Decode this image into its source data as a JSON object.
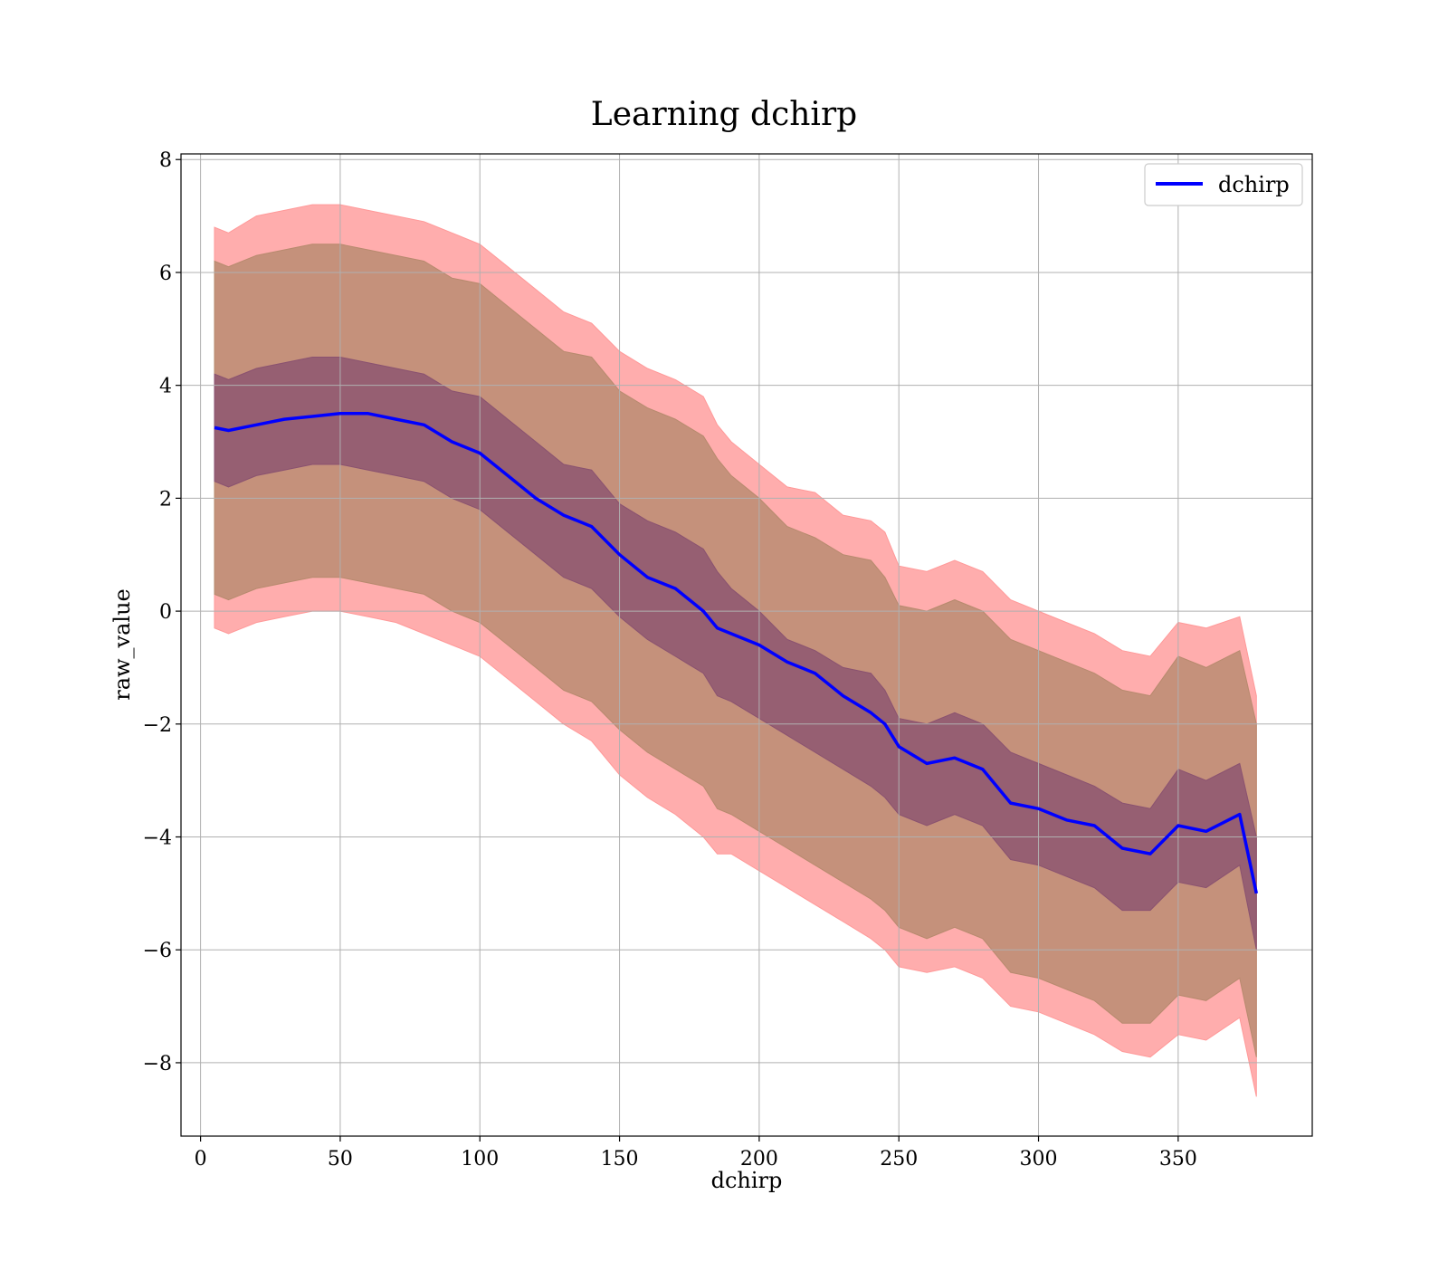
{
  "chart_data": {
    "type": "line",
    "title": "Learning dchirp",
    "xlabel": "dchirp",
    "ylabel": "raw_value",
    "xlim": [
      -7,
      398
    ],
    "ylim": [
      -9.3,
      8.1
    ],
    "x_ticks": [
      0,
      50,
      100,
      150,
      200,
      250,
      300,
      350
    ],
    "x_tick_labels": [
      "0",
      "50",
      "100",
      "150",
      "200",
      "250",
      "300",
      "350"
    ],
    "y_ticks": [
      8,
      6,
      4,
      2,
      0,
      -2,
      -4,
      -6,
      -8
    ],
    "y_tick_labels": [
      "8",
      "6",
      "4",
      "2",
      "0",
      "−2",
      "−4",
      "−6",
      "−8"
    ],
    "grid": true,
    "legend": {
      "position": "top-right",
      "entries": [
        "dchirp"
      ]
    },
    "colors": {
      "line": "#0000ff",
      "band_outer": "#ff9999",
      "band_middle": "#b78a6e",
      "band_inner": "#8a5270",
      "grid": "#b0b0b0"
    },
    "series": [
      {
        "name": "dchirp",
        "x": [
          5,
          10,
          20,
          30,
          40,
          50,
          60,
          70,
          80,
          90,
          100,
          110,
          120,
          130,
          140,
          150,
          160,
          170,
          180,
          185,
          190,
          200,
          210,
          220,
          230,
          240,
          245,
          250,
          260,
          270,
          280,
          290,
          300,
          310,
          320,
          330,
          340,
          350,
          360,
          372,
          378
        ],
        "y": [
          3.25,
          3.2,
          3.3,
          3.4,
          3.45,
          3.5,
          3.5,
          3.4,
          3.3,
          3.0,
          2.8,
          2.4,
          2.0,
          1.7,
          1.5,
          1.0,
          0.6,
          0.4,
          0.0,
          -0.3,
          -0.4,
          -0.6,
          -0.9,
          -1.1,
          -1.5,
          -1.8,
          -2.0,
          -2.4,
          -2.7,
          -2.6,
          -2.8,
          -3.4,
          -3.5,
          -3.7,
          -3.8,
          -4.2,
          -4.3,
          -3.8,
          -3.9,
          -3.6,
          -5.0
        ]
      }
    ],
    "bands": [
      {
        "level": "outer",
        "lower": [
          -0.3,
          -0.4,
          -0.2,
          -0.1,
          0.0,
          0.0,
          -0.1,
          -0.2,
          -0.4,
          -0.6,
          -0.8,
          -1.2,
          -1.6,
          -2.0,
          -2.3,
          -2.9,
          -3.3,
          -3.6,
          -4.0,
          -4.3,
          -4.3,
          -4.6,
          -4.9,
          -5.2,
          -5.5,
          -5.8,
          -6.0,
          -6.3,
          -6.4,
          -6.3,
          -6.5,
          -7.0,
          -7.1,
          -7.3,
          -7.5,
          -7.8,
          -7.9,
          -7.5,
          -7.6,
          -7.2,
          -8.6
        ],
        "upper": [
          6.8,
          6.7,
          7.0,
          7.1,
          7.2,
          7.2,
          7.1,
          7.0,
          6.9,
          6.7,
          6.5,
          6.1,
          5.7,
          5.3,
          5.1,
          4.6,
          4.3,
          4.1,
          3.8,
          3.3,
          3.0,
          2.6,
          2.2,
          2.1,
          1.7,
          1.6,
          1.4,
          0.8,
          0.7,
          0.9,
          0.7,
          0.2,
          0.0,
          -0.2,
          -0.4,
          -0.7,
          -0.8,
          -0.2,
          -0.3,
          -0.1,
          -1.5
        ]
      },
      {
        "level": "middle",
        "lower": [
          0.3,
          0.2,
          0.4,
          0.5,
          0.6,
          0.6,
          0.5,
          0.4,
          0.3,
          0.0,
          -0.2,
          -0.6,
          -1.0,
          -1.4,
          -1.6,
          -2.1,
          -2.5,
          -2.8,
          -3.1,
          -3.5,
          -3.6,
          -3.9,
          -4.2,
          -4.5,
          -4.8,
          -5.1,
          -5.3,
          -5.6,
          -5.8,
          -5.6,
          -5.8,
          -6.4,
          -6.5,
          -6.7,
          -6.9,
          -7.3,
          -7.3,
          -6.8,
          -6.9,
          -6.5,
          -7.9
        ],
        "upper": [
          6.2,
          6.1,
          6.3,
          6.4,
          6.5,
          6.5,
          6.4,
          6.3,
          6.2,
          5.9,
          5.8,
          5.4,
          5.0,
          4.6,
          4.5,
          3.9,
          3.6,
          3.4,
          3.1,
          2.7,
          2.4,
          2.0,
          1.5,
          1.3,
          1.0,
          0.9,
          0.6,
          0.1,
          0.0,
          0.2,
          0.0,
          -0.5,
          -0.7,
          -0.9,
          -1.1,
          -1.4,
          -1.5,
          -0.8,
          -1.0,
          -0.7,
          -2.0
        ]
      },
      {
        "level": "inner",
        "lower": [
          2.3,
          2.2,
          2.4,
          2.5,
          2.6,
          2.6,
          2.5,
          2.4,
          2.3,
          2.0,
          1.8,
          1.4,
          1.0,
          0.6,
          0.4,
          -0.1,
          -0.5,
          -0.8,
          -1.1,
          -1.5,
          -1.6,
          -1.9,
          -2.2,
          -2.5,
          -2.8,
          -3.1,
          -3.3,
          -3.6,
          -3.8,
          -3.6,
          -3.8,
          -4.4,
          -4.5,
          -4.7,
          -4.9,
          -5.3,
          -5.3,
          -4.8,
          -4.9,
          -4.5,
          -6.0
        ],
        "upper": [
          4.2,
          4.1,
          4.3,
          4.4,
          4.5,
          4.5,
          4.4,
          4.3,
          4.2,
          3.9,
          3.8,
          3.4,
          3.0,
          2.6,
          2.5,
          1.9,
          1.6,
          1.4,
          1.1,
          0.7,
          0.4,
          0.0,
          -0.5,
          -0.7,
          -1.0,
          -1.1,
          -1.4,
          -1.9,
          -2.0,
          -1.8,
          -2.0,
          -2.5,
          -2.7,
          -2.9,
          -3.1,
          -3.4,
          -3.5,
          -2.8,
          -3.0,
          -2.7,
          -4.0
        ]
      }
    ]
  }
}
